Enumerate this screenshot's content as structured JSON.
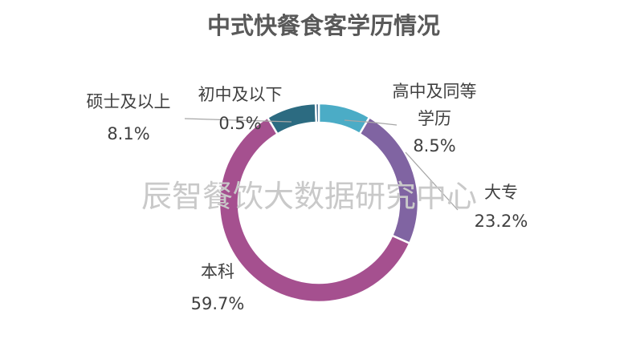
{
  "chart_data": {
    "type": "donut",
    "title": "中式快餐食客学历情况",
    "unit": "%",
    "slices": [
      {
        "name": "高中及同等学历",
        "name_lines": [
          "高中及同等",
          "学历"
        ],
        "value": 8.5,
        "label": "8.5%",
        "color": "#4bacc6"
      },
      {
        "name": "大专",
        "name_lines": [
          "大专"
        ],
        "value": 23.2,
        "label": "23.2%",
        "color": "#8064a2"
      },
      {
        "name": "本科",
        "name_lines": [
          "本科"
        ],
        "value": 59.7,
        "label": "59.7%",
        "color": "#a5508f"
      },
      {
        "name": "硕士及以上",
        "name_lines": [
          "硕士及以上"
        ],
        "value": 8.1,
        "label": "8.1%",
        "color": "#2c6b81"
      },
      {
        "name": "初中及以下",
        "name_lines": [
          "初中及以下"
        ],
        "value": 0.5,
        "label": "0.5%",
        "color": "#1f4e79"
      }
    ],
    "legend": "none"
  },
  "watermark": "辰智餐饮大数据研究中心"
}
